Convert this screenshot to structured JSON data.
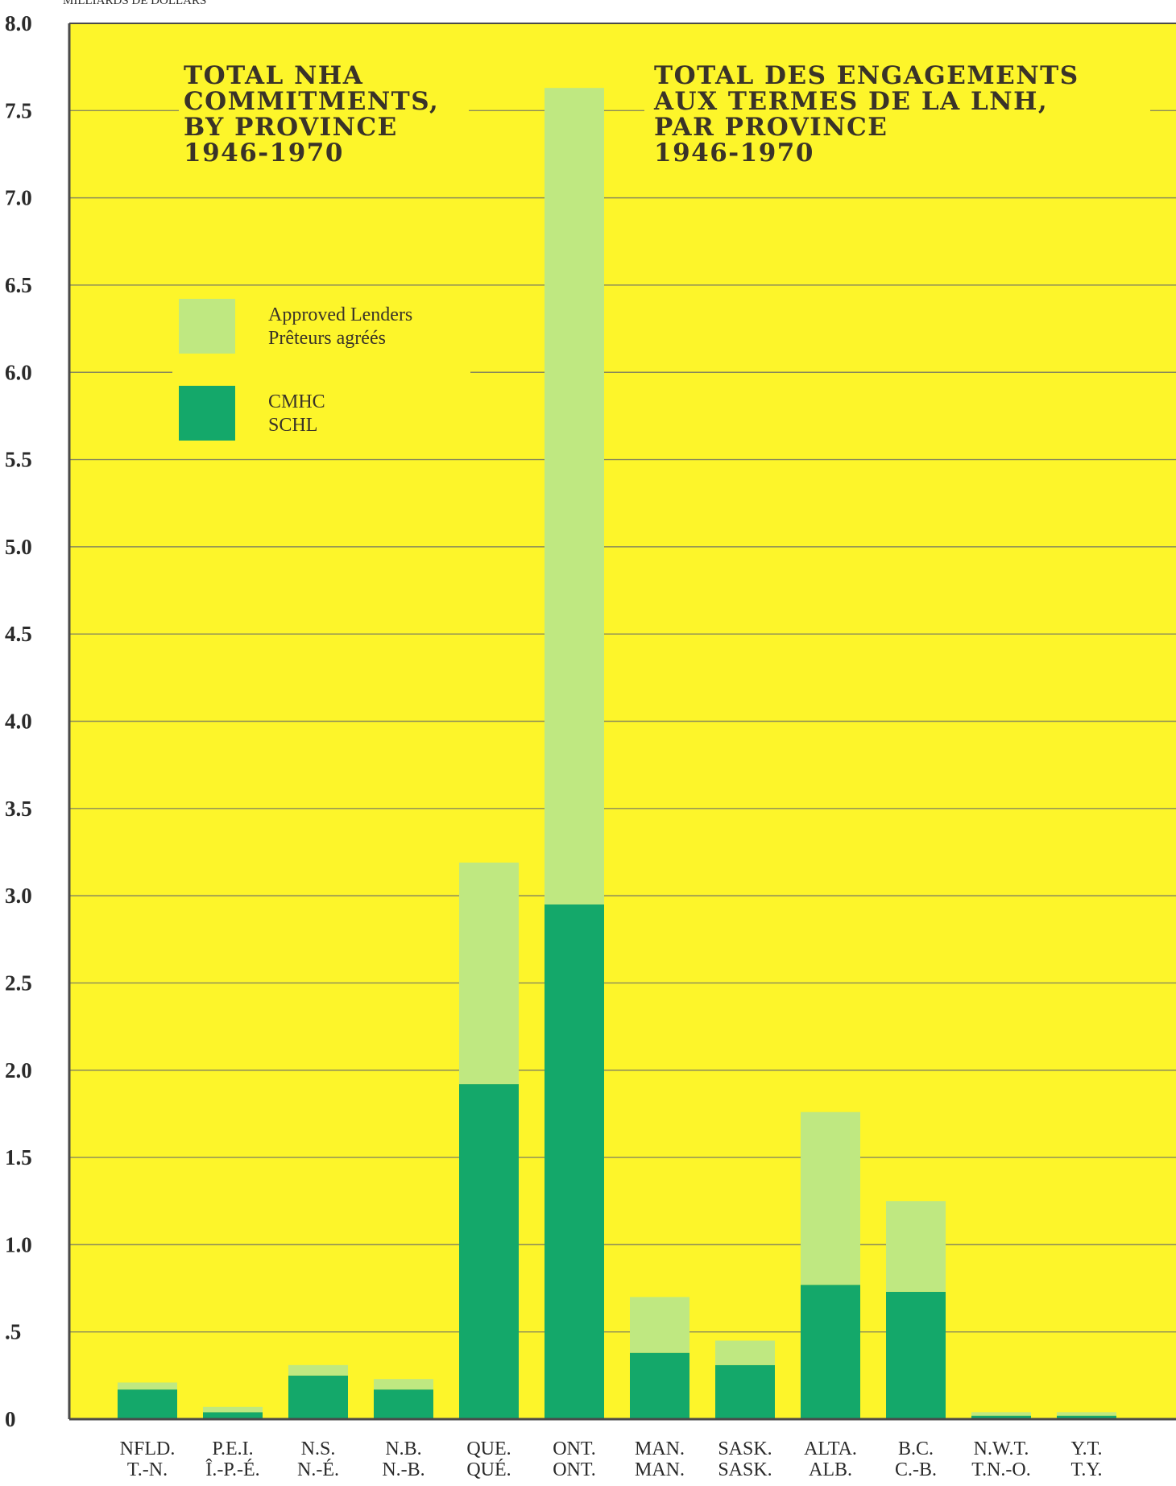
{
  "chart_data": {
    "type": "bar",
    "stacked": true,
    "unit_label": "MILLIARDS DE DOLLARS",
    "title_en": [
      "TOTAL NHA",
      "COMMITMENTS,",
      "BY PROVINCE",
      "1946-1970"
    ],
    "title_fr": [
      "TOTAL DES ENGAGEMENTS",
      "AUX TERMES DE LA LNH,",
      "PAR PROVINCE",
      "1946-1970"
    ],
    "ylim": [
      0,
      8.0
    ],
    "yticks": [
      0,
      0.5,
      1.0,
      1.5,
      2.0,
      2.5,
      3.0,
      3.5,
      4.0,
      4.5,
      5.0,
      5.5,
      6.0,
      6.5,
      7.0,
      7.5,
      8.0
    ],
    "ytick_labels": [
      "0",
      ".5",
      "1.0",
      "1.5",
      "2.0",
      "2.5",
      "3.0",
      "3.5",
      "4.0",
      "4.5",
      "5.0",
      "5.5",
      "6.0",
      "6.5",
      "7.0",
      "7.5",
      "8.0"
    ],
    "grid": true,
    "categories_en": [
      "NFLD.",
      "P.E.I.",
      "N.S.",
      "N.B.",
      "QUE.",
      "ONT.",
      "MAN.",
      "SASK.",
      "ALTA.",
      "B.C.",
      "N.W.T.",
      "Y.T."
    ],
    "categories_fr": [
      "T.-N.",
      "Î.-P.-É.",
      "N.-É.",
      "N.-B.",
      "QUÉ.",
      "ONT.",
      "MAN.",
      "SASK.",
      "ALB.",
      "C.-B.",
      "T.N.-O.",
      "T.Y."
    ],
    "series": [
      {
        "name": "CMHC SCHL",
        "legend_lines": [
          "CMHC",
          "SCHL"
        ],
        "color": "#14a86a",
        "values": [
          0.17,
          0.04,
          0.25,
          0.17,
          1.92,
          2.95,
          0.38,
          0.31,
          0.77,
          0.73,
          0.02,
          0.02
        ]
      },
      {
        "name": "Approved Lenders Prêteurs agréés",
        "legend_lines": [
          "Approved Lenders",
          "Prêteurs agréés"
        ],
        "color": "#bfe881",
        "values": [
          0.04,
          0.03,
          0.06,
          0.06,
          1.27,
          4.68,
          0.32,
          0.14,
          0.99,
          0.52,
          0.02,
          0.02
        ]
      }
    ],
    "colors": {
      "background": "#fdf52a",
      "frame": "#4a4a4a",
      "grid": "#8a8a5a"
    }
  }
}
